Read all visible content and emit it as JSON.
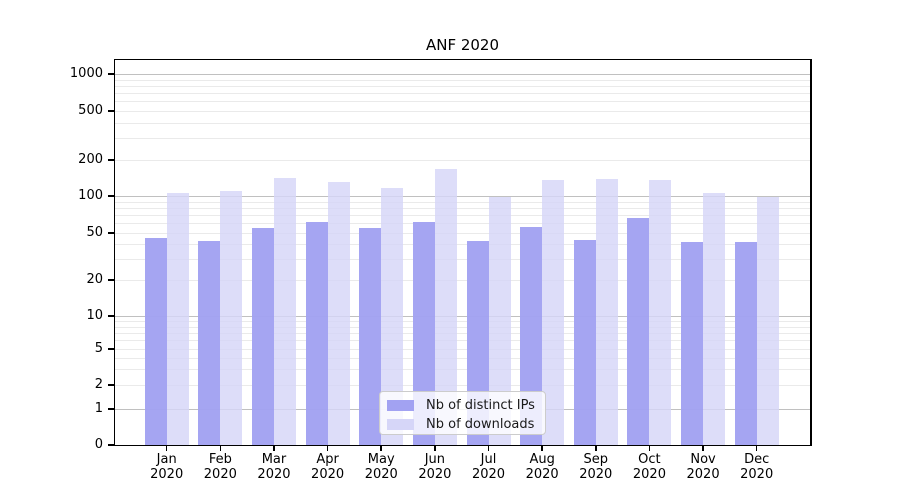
{
  "chart_data": {
    "type": "bar",
    "title": "ANF 2020",
    "yscale": "symlog",
    "grid": "minor gridlines light gray, decade gridlines darker gray",
    "legend_position": "lower center",
    "x_year": "2020",
    "months": [
      "Jan",
      "Feb",
      "Mar",
      "Apr",
      "May",
      "Jun",
      "Jul",
      "Aug",
      "Sep",
      "Oct",
      "Nov",
      "Dec"
    ],
    "categories": [
      "Jan 2020",
      "Feb 2020",
      "Mar 2020",
      "Apr 2020",
      "May 2020",
      "Jun 2020",
      "Jul 2020",
      "Aug 2020",
      "Sep 2020",
      "Oct 2020",
      "Nov 2020",
      "Dec 2020"
    ],
    "series": [
      {
        "name": "Nb of distinct IPs",
        "color": "#a2a2f2",
        "values": [
          45,
          43,
          55,
          61,
          55,
          61,
          43,
          56,
          44,
          66,
          42,
          42
        ]
      },
      {
        "name": "Nb of downloads",
        "color": "#d6d6f8",
        "values": [
          105,
          110,
          142,
          130,
          117,
          168,
          99,
          136,
          138,
          135,
          106,
          99
        ]
      }
    ],
    "yticks": [
      0,
      1,
      2,
      5,
      10,
      20,
      50,
      100,
      200,
      500,
      1000
    ],
    "ylim": [
      0,
      1300
    ]
  },
  "colors": {
    "major_grid": "#c0c0c0",
    "minor_grid": "#eaeaea",
    "spine": "#000000",
    "background": "#ffffff",
    "text": "#000000"
  }
}
